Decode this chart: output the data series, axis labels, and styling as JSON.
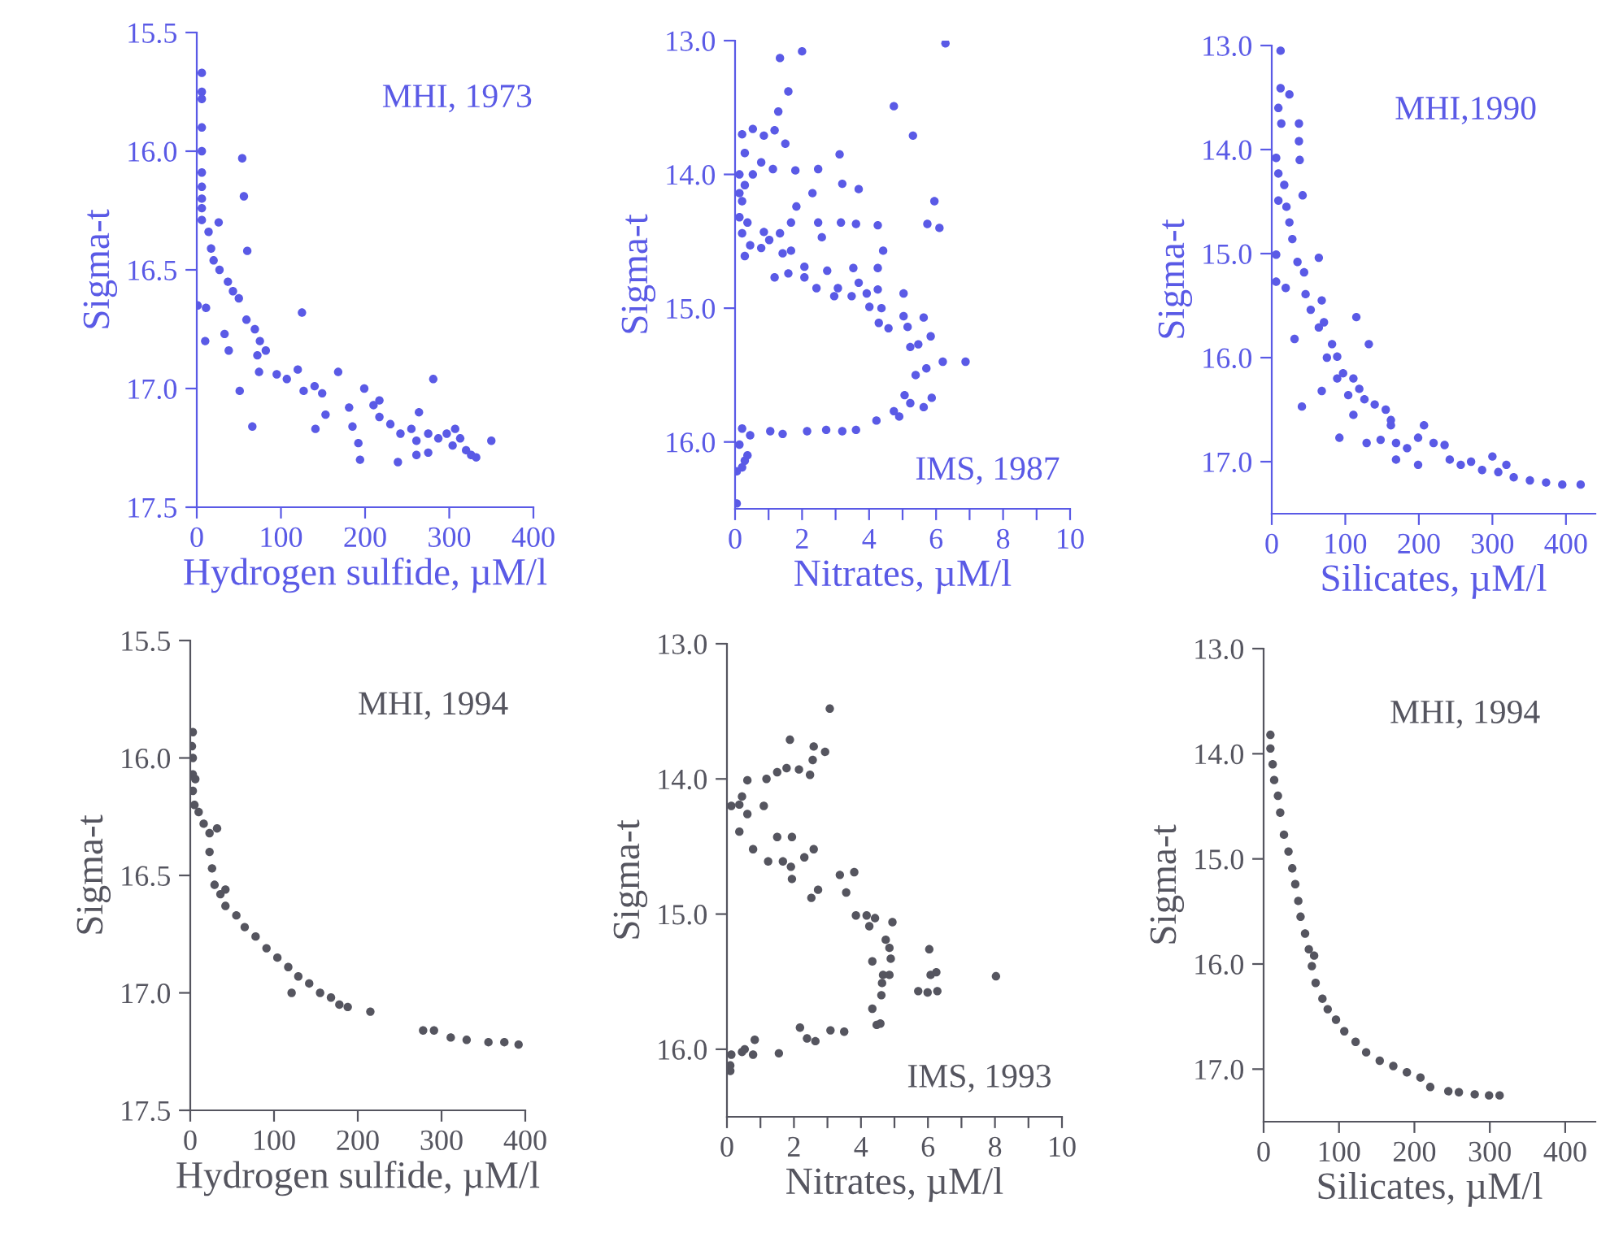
{
  "chart_data": [
    {
      "type": "scatter",
      "xlabel": "Hydrogen sulfide, µM/l",
      "ylabel": "Sigma-t",
      "annotations": [
        "MHI, 1973"
      ],
      "xlim": [
        0,
        400
      ],
      "ylim": [
        17.5,
        15.5
      ],
      "xticks": [
        0,
        100,
        200,
        300,
        400
      ],
      "yticks": [
        15.5,
        {
          "value": 16,
          "label": "16.0"
        },
        16.5,
        {
          "value": 17,
          "label": "17.0"
        },
        17.5
      ],
      "marker": "circle",
      "grid": false,
      "series": [
        {
          "color": "#5a5ae6",
          "x": [
            6,
            6,
            6,
            6,
            6,
            6,
            6,
            6,
            6,
            6,
            54,
            56,
            60,
            14,
            26,
            17,
            20,
            27,
            37,
            43,
            50,
            1,
            11,
            10,
            33,
            38,
            59,
            69,
            75,
            82,
            72,
            74,
            51,
            66,
            95,
            125,
            107,
            120,
            127,
            140,
            149,
            153,
            141,
            168,
            199,
            181,
            185,
            192,
            194,
            210,
            217,
            230,
            242,
            255,
            261,
            239,
            261,
            264,
            281,
            275,
            287,
            297,
            307,
            313,
            320,
            326,
            332,
            304,
            350,
            217,
            275
          ],
          "values": [
            15.67,
            15.75,
            15.78,
            15.9,
            16.0,
            16.09,
            16.15,
            16.2,
            16.24,
            16.29,
            16.03,
            16.19,
            16.42,
            16.34,
            16.3,
            16.41,
            16.46,
            16.5,
            16.55,
            16.59,
            16.62,
            16.65,
            16.66,
            16.8,
            16.77,
            16.84,
            16.71,
            16.75,
            16.8,
            16.84,
            16.86,
            16.93,
            17.01,
            17.16,
            16.94,
            16.68,
            16.96,
            16.92,
            17.01,
            16.99,
            17.02,
            17.11,
            17.17,
            16.93,
            17.0,
            17.08,
            17.16,
            17.23,
            17.3,
            17.07,
            17.12,
            17.15,
            17.19,
            17.17,
            17.22,
            17.31,
            17.28,
            17.1,
            16.96,
            17.19,
            17.21,
            17.19,
            17.17,
            17.21,
            17.26,
            17.28,
            17.29,
            17.24,
            17.22,
            17.05,
            17.27
          ]
        }
      ]
    },
    {
      "type": "scatter",
      "xlabel": "Nitrates, µM/l",
      "ylabel": "Sigma-t",
      "annotations": [
        "IMS, 1987"
      ],
      "xlim": [
        0,
        10
      ],
      "ylim": [
        16.5,
        13.0
      ],
      "xticks": [
        0,
        {
          "value": 1,
          "label": null
        },
        2,
        {
          "value": 3,
          "label": null
        },
        4,
        {
          "value": 5,
          "label": null
        },
        6,
        {
          "value": 7,
          "label": null
        },
        8,
        {
          "value": 9,
          "label": null
        },
        10
      ],
      "yticks": [
        {
          "value": 13,
          "label": "13.0"
        },
        {
          "value": 14,
          "label": "14.0"
        },
        {
          "value": 15,
          "label": "15.0"
        },
        {
          "value": 16,
          "label": "16.0"
        }
      ],
      "marker": "circle",
      "grid": false,
      "series": [
        {
          "color": "#5a5ae6",
          "x": [
            1.34,
            2.0,
            6.28,
            1.59,
            1.29,
            4.74,
            5.31,
            1.5,
            1.18,
            0.86,
            0.53,
            0.21,
            0.29,
            0.78,
            1.13,
            1.8,
            2.48,
            3.12,
            2.31,
            3.2,
            3.69,
            5.95,
            5.74,
            6.1,
            0.13,
            0.29,
            0.21,
            0.13,
            0.37,
            0.21,
            0.45,
            0.29,
            0.13,
            0.53,
            1.83,
            1.67,
            1.34,
            1.02,
            0.78,
            0.86,
            1.42,
            1.67,
            2.48,
            2.59,
            3.16,
            3.61,
            4.26,
            4.42,
            1.18,
            1.59,
            2.07,
            2.07,
            2.43,
            2.75,
            2.96,
            3.07,
            3.53,
            3.48,
            3.69,
            4.26,
            3.93,
            4.26,
            4.01,
            4.37,
            5.03,
            4.29,
            4.58,
            5.03,
            5.15,
            5.63,
            5.84,
            5.23,
            5.47,
            6.2,
            6.88,
            5.71,
            5.39,
            5.06,
            5.23,
            5.87,
            5.63,
            4.9,
            4.74,
            4.22,
            3.61,
            3.2,
            2.72,
            2.15,
            1.42,
            1.05,
            0.45,
            0.21,
            0.13,
            0.29,
            0.37,
            0.21,
            0.05,
            0.05
          ],
          "values": [
            13.13,
            13.08,
            13.02,
            13.38,
            13.53,
            13.49,
            13.71,
            13.77,
            13.67,
            13.71,
            13.66,
            13.7,
            13.84,
            13.91,
            13.96,
            13.97,
            13.96,
            13.85,
            14.14,
            14.07,
            14.11,
            14.2,
            14.37,
            14.4,
            14.0,
            14.08,
            14.2,
            14.32,
            14.36,
            14.44,
            14.53,
            14.61,
            14.14,
            14.0,
            14.24,
            14.36,
            14.44,
            14.49,
            14.55,
            14.43,
            14.59,
            14.57,
            14.36,
            14.47,
            14.36,
            14.37,
            14.38,
            14.57,
            14.77,
            14.74,
            14.69,
            14.77,
            14.85,
            14.72,
            14.91,
            14.85,
            14.7,
            14.91,
            14.81,
            14.7,
            14.89,
            14.86,
            14.99,
            15.0,
            14.89,
            15.11,
            15.15,
            15.06,
            15.14,
            15.07,
            15.21,
            15.29,
            15.27,
            15.4,
            15.4,
            15.45,
            15.5,
            15.65,
            15.71,
            15.67,
            15.74,
            15.81,
            15.77,
            15.84,
            15.91,
            15.92,
            15.91,
            15.92,
            15.94,
            15.92,
            15.95,
            15.9,
            16.02,
            16.14,
            16.1,
            16.19,
            16.22,
            16.46
          ]
        }
      ]
    },
    {
      "type": "scatter",
      "xlabel": "Silicates, µM/l",
      "ylabel": "Sigma-t",
      "annotations": [
        "MHI,1990"
      ],
      "xlim": [
        0,
        440
      ],
      "ylim": [
        17.5,
        13.0
      ],
      "xticks": [
        0,
        100,
        200,
        300,
        400
      ],
      "yticks": [
        {
          "value": 13,
          "label": "13.0"
        },
        {
          "value": 14,
          "label": "14.0"
        },
        {
          "value": 15,
          "label": "15.0"
        },
        {
          "value": 16,
          "label": "16.0"
        },
        {
          "value": 17,
          "label": "17.0"
        }
      ],
      "marker": "circle",
      "grid": false,
      "series": [
        {
          "color": "#5a5ae6",
          "x": [
            12,
            12,
            9,
            13,
            24,
            37,
            37,
            38,
            6,
            9,
            17,
            9,
            20,
            42,
            24,
            28,
            6,
            6,
            19,
            35,
            44,
            64,
            46,
            53,
            68,
            71,
            64,
            31,
            115,
            132,
            82,
            75,
            89,
            97,
            68,
            89,
            111,
            104,
            119,
            126,
            140,
            155,
            162,
            111,
            41,
            92,
            129,
            148,
            169,
            184,
            207,
            199,
            220,
            235,
            242,
            257,
            271,
            300,
            286,
            308,
            319,
            329,
            351,
            373,
            395,
            420,
            169,
            199,
            162
          ],
          "values": [
            13.05,
            13.41,
            13.6,
            13.75,
            13.47,
            13.75,
            13.92,
            14.1,
            14.08,
            14.23,
            14.34,
            14.49,
            14.55,
            14.44,
            14.7,
            14.86,
            15.01,
            15.27,
            15.33,
            15.08,
            15.18,
            15.04,
            15.39,
            15.54,
            15.45,
            15.66,
            15.71,
            15.82,
            15.61,
            15.87,
            15.87,
            16.0,
            15.99,
            16.15,
            16.32,
            16.2,
            16.2,
            16.36,
            16.3,
            16.4,
            16.45,
            16.5,
            16.6,
            16.55,
            16.47,
            16.77,
            16.82,
            16.79,
            16.82,
            16.87,
            16.65,
            16.77,
            16.82,
            16.84,
            16.98,
            17.03,
            17.0,
            16.95,
            17.08,
            17.1,
            17.03,
            17.15,
            17.18,
            17.2,
            17.22,
            17.22,
            16.98,
            17.03,
            16.65
          ]
        }
      ]
    },
    {
      "type": "scatter",
      "xlabel": "Hydrogen sulfide, µM/l",
      "ylabel": "Sigma-t",
      "annotations": [
        "MHI, 1994"
      ],
      "xlim": [
        0,
        400
      ],
      "ylim": [
        17.5,
        15.5
      ],
      "xticks": [
        0,
        100,
        200,
        300,
        400
      ],
      "yticks": [
        15.5,
        {
          "value": 16,
          "label": "16.0"
        },
        16.5,
        {
          "value": 17,
          "label": "17.0"
        },
        17.5
      ],
      "marker": "circle",
      "grid": false,
      "series": [
        {
          "color": "#55555f",
          "x": [
            3,
            2,
            3,
            3,
            3,
            5,
            10,
            16,
            23,
            32,
            23,
            26,
            29,
            36,
            42,
            55,
            65,
            78,
            91,
            104,
            117,
            129,
            142,
            155,
            168,
            178,
            188,
            121,
            215,
            278,
            291,
            311,
            330,
            356,
            375,
            392,
            42,
            6
          ],
          "values": [
            15.89,
            15.95,
            16.0,
            16.07,
            16.14,
            16.2,
            16.23,
            16.28,
            16.32,
            16.3,
            16.4,
            16.47,
            16.54,
            16.58,
            16.63,
            16.67,
            16.72,
            16.76,
            16.81,
            16.85,
            16.89,
            16.93,
            16.96,
            17.0,
            17.02,
            17.05,
            17.06,
            17.0,
            17.08,
            17.16,
            17.16,
            17.19,
            17.2,
            17.21,
            17.21,
            17.22,
            16.56,
            16.09
          ]
        }
      ]
    },
    {
      "type": "scatter",
      "xlabel": "Nitrates, µM/l",
      "ylabel": "Sigma-t",
      "annotations": [
        "IMS, 1993"
      ],
      "xlim": [
        0,
        10
      ],
      "ylim": [
        16.5,
        13.0
      ],
      "xticks": [
        0,
        {
          "value": 1,
          "label": null
        },
        2,
        {
          "value": 3,
          "label": null
        },
        4,
        {
          "value": 5,
          "label": null
        },
        6,
        {
          "value": 7,
          "label": null
        },
        8,
        {
          "value": 9,
          "label": null
        },
        10
      ],
      "yticks": [
        {
          "value": 13,
          "label": "13.0"
        },
        {
          "value": 14,
          "label": "14.0"
        },
        {
          "value": 15,
          "label": "15.0"
        },
        {
          "value": 16,
          "label": "16.0"
        }
      ],
      "marker": "circle",
      "grid": false,
      "series": [
        {
          "color": "#55555f",
          "x": [
            3.07,
            1.88,
            2.59,
            2.93,
            2.56,
            2.48,
            2.15,
            1.78,
            1.5,
            1.18,
            0.61,
            0.45,
            0.13,
            0.37,
            0.61,
            1.1,
            0.37,
            0.78,
            1.23,
            1.67,
            1.5,
            1.94,
            1.91,
            1.94,
            2.31,
            2.59,
            2.52,
            2.72,
            3.37,
            3.8,
            3.56,
            3.85,
            4.17,
            4.42,
            4.25,
            4.94,
            4.74,
            4.85,
            4.89,
            4.34,
            4.66,
            4.85,
            4.63,
            4.61,
            4.34,
            4.47,
            4.58,
            6.04,
            6.08,
            6.25,
            8.03,
            5.71,
            5.99,
            6.28,
            2.18,
            2.39,
            2.64,
            3.09,
            3.5,
            1.55,
            0.83,
            0.53,
            0.78,
            0.13,
            0.1,
            0.1,
            0.45
          ],
          "values": [
            13.48,
            13.71,
            13.76,
            13.8,
            13.86,
            13.97,
            13.93,
            13.92,
            13.95,
            14.0,
            14.01,
            14.13,
            14.2,
            14.19,
            14.26,
            14.2,
            14.39,
            14.52,
            14.61,
            14.61,
            14.43,
            14.43,
            14.65,
            14.74,
            14.58,
            14.52,
            14.88,
            14.82,
            14.71,
            14.69,
            14.84,
            15.01,
            15.01,
            15.03,
            15.09,
            15.06,
            15.19,
            15.25,
            15.33,
            15.35,
            15.45,
            15.45,
            15.51,
            15.6,
            15.7,
            15.82,
            15.81,
            15.26,
            15.45,
            15.43,
            15.46,
            15.57,
            15.58,
            15.57,
            15.84,
            15.92,
            15.94,
            15.86,
            15.87,
            16.03,
            15.93,
            16.0,
            16.04,
            16.04,
            16.12,
            16.16,
            16.02
          ]
        }
      ]
    },
    {
      "type": "scatter",
      "xlabel": "Silicates, µM/l",
      "ylabel": "Sigma-t",
      "annotations": [
        "MHI, 1994"
      ],
      "xlim": [
        0,
        440
      ],
      "ylim": [
        17.5,
        13.0
      ],
      "xticks": [
        0,
        100,
        200,
        300,
        400
      ],
      "yticks": [
        {
          "value": 13,
          "label": "13.0"
        },
        {
          "value": 14,
          "label": "14.0"
        },
        {
          "value": 15,
          "label": "15.0"
        },
        {
          "value": 16,
          "label": "16.0"
        },
        {
          "value": 17,
          "label": "17.0"
        }
      ],
      "marker": "circle",
      "grid": false,
      "series": [
        {
          "color": "#55555f",
          "x": [
            9,
            9,
            12,
            14,
            19,
            22,
            27,
            33,
            38,
            42,
            46,
            49,
            55,
            60,
            64,
            69,
            78,
            85,
            96,
            107,
            122,
            136,
            154,
            172,
            190,
            208,
            221,
            245,
            259,
            280,
            299,
            313,
            67
          ],
          "values": [
            13.82,
            13.95,
            14.1,
            14.25,
            14.4,
            14.56,
            14.77,
            14.93,
            15.09,
            15.24,
            15.4,
            15.55,
            15.71,
            15.86,
            16.02,
            16.18,
            16.33,
            16.43,
            16.53,
            16.64,
            16.74,
            16.84,
            16.92,
            16.97,
            17.03,
            17.08,
            17.17,
            17.21,
            17.22,
            17.24,
            17.25,
            17.25,
            15.92
          ]
        }
      ]
    }
  ]
}
